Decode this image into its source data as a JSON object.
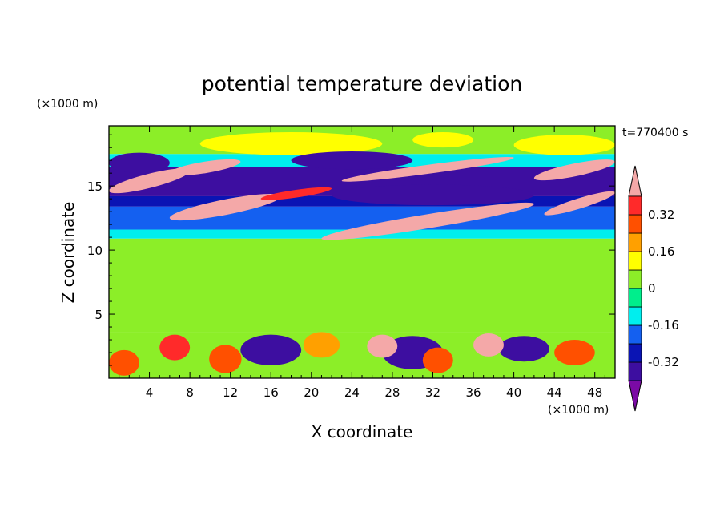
{
  "chart_data": {
    "type": "heatmap",
    "title": "potential temperature deviation",
    "xlabel": "X coordinate",
    "ylabel": "Z coordinate",
    "x_unit_label": "(×1000 m)",
    "y_unit_label": "(×1000 m)",
    "time_label": "t=770400 s",
    "xlim": [
      0,
      50
    ],
    "ylim": [
      0,
      19.7
    ],
    "x_ticks": [
      4,
      8,
      12,
      16,
      20,
      24,
      28,
      32,
      36,
      40,
      44,
      48
    ],
    "y_ticks": [
      5,
      10,
      15
    ],
    "colorbar": {
      "levels": [
        -0.4,
        -0.32,
        -0.24,
        -0.16,
        -0.08,
        0,
        0.08,
        0.16,
        0.24,
        0.32,
        0.4
      ],
      "colors": [
        "#7b0aa5",
        "#3d0ea0",
        "#0a14b4",
        "#1460f0",
        "#00eeee",
        "#00ee8c",
        "#8cee28",
        "#ffff00",
        "#ffa000",
        "#ff5000",
        "#ff2a2a",
        "#f4a8a8"
      ],
      "tick_labels": [
        "0.32",
        "0.16",
        "0",
        "-0.16",
        "-0.32"
      ],
      "tick_values": [
        0.32,
        0.16,
        0,
        -0.16,
        -0.32
      ]
    },
    "regions": [
      {
        "kind": "band",
        "z0": 0,
        "z1": 3.6,
        "value": 0.05
      },
      {
        "kind": "band",
        "z0": 3.6,
        "z1": 10.9,
        "value": 0.03
      },
      {
        "kind": "band",
        "z0": 10.9,
        "z1": 11.6,
        "value": -0.12
      },
      {
        "kind": "band",
        "z0": 11.6,
        "z1": 13.4,
        "value": -0.2
      },
      {
        "kind": "band",
        "z0": 13.4,
        "z1": 14.2,
        "value": -0.3
      },
      {
        "kind": "band",
        "z0": 14.2,
        "z1": 16.5,
        "value": -0.38
      },
      {
        "kind": "band",
        "z0": 16.5,
        "z1": 17.5,
        "value": -0.1
      },
      {
        "kind": "band",
        "z0": 17.5,
        "z1": 19.7,
        "value": 0.04
      },
      {
        "kind": "blob",
        "x": 18,
        "z": 18.3,
        "rx": 9,
        "rz": 0.9,
        "value": 0.08
      },
      {
        "kind": "blob",
        "x": 33,
        "z": 18.6,
        "rx": 3,
        "rz": 0.6,
        "value": 0.12
      },
      {
        "kind": "blob",
        "x": 45,
        "z": 18.2,
        "rx": 5,
        "rz": 0.8,
        "value": 0.08
      },
      {
        "kind": "streak",
        "x0": 0,
        "z0": 14.6,
        "x1": 8,
        "z1": 16.2,
        "w": 1.1,
        "value": 0.4
      },
      {
        "kind": "streak",
        "x0": 6,
        "z0": 16.0,
        "x1": 13,
        "z1": 16.9,
        "w": 0.9,
        "value": 0.4
      },
      {
        "kind": "streak",
        "x0": 6,
        "z0": 12.5,
        "x1": 17,
        "z1": 14.2,
        "w": 1.2,
        "value": 0.4
      },
      {
        "kind": "streak",
        "x0": 15,
        "z0": 14.0,
        "x1": 22,
        "z1": 14.8,
        "w": 0.6,
        "value": 0.32
      },
      {
        "kind": "streak",
        "x0": 23,
        "z0": 15.4,
        "x1": 40,
        "z1": 17.2,
        "w": 0.7,
        "value": 0.4
      },
      {
        "kind": "streak",
        "x0": 21,
        "z0": 10.9,
        "x1": 42,
        "z1": 13.6,
        "w": 1.1,
        "value": 0.4
      },
      {
        "kind": "streak",
        "x0": 42,
        "z0": 15.6,
        "x1": 50,
        "z1": 16.9,
        "w": 1.0,
        "value": 0.4
      },
      {
        "kind": "streak",
        "x0": 43,
        "z0": 12.8,
        "x1": 50,
        "z1": 14.5,
        "w": 0.8,
        "value": 0.4
      },
      {
        "kind": "blob",
        "x": 24,
        "z": 17.0,
        "rx": 6,
        "rz": 0.7,
        "value": -0.4
      },
      {
        "kind": "blob",
        "x": 32,
        "z": 14.3,
        "rx": 10,
        "rz": 0.8,
        "value": -0.4
      },
      {
        "kind": "blob",
        "x": 3,
        "z": 16.8,
        "rx": 3,
        "rz": 0.8,
        "value": -0.4
      },
      {
        "kind": "blob",
        "x": 16,
        "z": 2.2,
        "rx": 3,
        "rz": 1.2,
        "value": -0.36
      },
      {
        "kind": "blob",
        "x": 30,
        "z": 2.0,
        "rx": 3,
        "rz": 1.3,
        "value": -0.34
      },
      {
        "kind": "blob",
        "x": 41,
        "z": 2.3,
        "rx": 2.5,
        "rz": 1.0,
        "value": -0.34
      },
      {
        "kind": "blob",
        "x": 37.5,
        "z": 2.6,
        "rx": 1.5,
        "rz": 0.9,
        "value": 0.4
      },
      {
        "kind": "blob",
        "x": 27,
        "z": 2.5,
        "rx": 1.5,
        "rz": 0.9,
        "value": 0.4
      },
      {
        "kind": "blob",
        "x": 6.5,
        "z": 2.4,
        "rx": 1.5,
        "rz": 1.0,
        "value": 0.32
      },
      {
        "kind": "blob",
        "x": 11.5,
        "z": 1.5,
        "rx": 1.6,
        "rz": 1.1,
        "value": 0.3
      },
      {
        "kind": "blob",
        "x": 32.5,
        "z": 1.4,
        "rx": 1.5,
        "rz": 1.0,
        "value": 0.28
      },
      {
        "kind": "blob",
        "x": 46,
        "z": 2.0,
        "rx": 2,
        "rz": 1.0,
        "value": 0.26
      },
      {
        "kind": "blob",
        "x": 21,
        "z": 2.6,
        "rx": 1.8,
        "rz": 1.0,
        "value": 0.22
      },
      {
        "kind": "blob",
        "x": 1.5,
        "z": 1.2,
        "rx": 1.5,
        "rz": 1.0,
        "value": 0.3
      }
    ]
  }
}
